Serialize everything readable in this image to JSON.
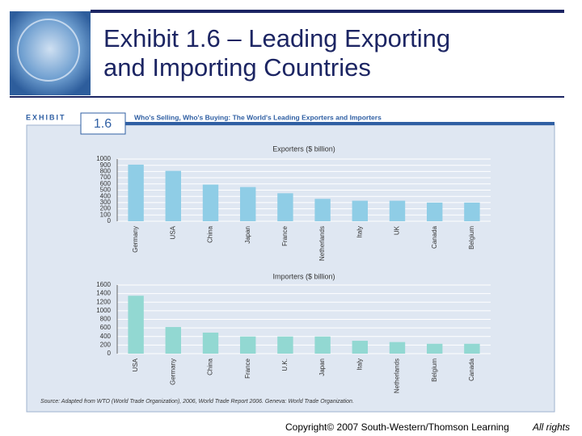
{
  "slide": {
    "title_line1": "Exhibit 1.6 – Leading Exporting",
    "title_line2": "and Importing Countries",
    "exhibit_label": "EXHIBIT",
    "exhibit_number": "1.6",
    "exhibit_title": "Who's Selling, Who's Buying: The World's Leading Exporters and Importers",
    "source": "Source: Adapted from WTO (World Trade Organization), 2006, World Trade Report 2006. Geneva: World Trade Organization.",
    "copyright": "Copyright© 2007 South-Western/Thomson Learning",
    "rights": "All rights"
  },
  "chart_data": [
    {
      "type": "bar",
      "title": "Exporters ($ billion)",
      "categories": [
        "Germany",
        "USA",
        "China",
        "Japan",
        "France",
        "Netherlands",
        "Italy",
        "UK",
        "Canada",
        "Belgium"
      ],
      "values": [
        910,
        810,
        590,
        550,
        450,
        360,
        330,
        330,
        300,
        300
      ],
      "color": "#8fcde6",
      "ylim": [
        0,
        1000
      ],
      "yticks": [
        0,
        100,
        200,
        300,
        400,
        500,
        600,
        700,
        800,
        900,
        1000
      ],
      "grid": true
    },
    {
      "type": "bar",
      "title": "Importers ($ billion)",
      "categories": [
        "USA",
        "Germany",
        "China",
        "France",
        "U.K.",
        "Japan",
        "Italy",
        "Netherlands",
        "Belgium",
        "Canada"
      ],
      "values": [
        1350,
        620,
        490,
        400,
        400,
        400,
        300,
        270,
        230,
        230
      ],
      "color": "#92d8d2",
      "ylim": [
        0,
        1600
      ],
      "yticks": [
        0,
        200,
        400,
        600,
        800,
        1000,
        1200,
        1400,
        1600
      ],
      "grid": true
    }
  ]
}
